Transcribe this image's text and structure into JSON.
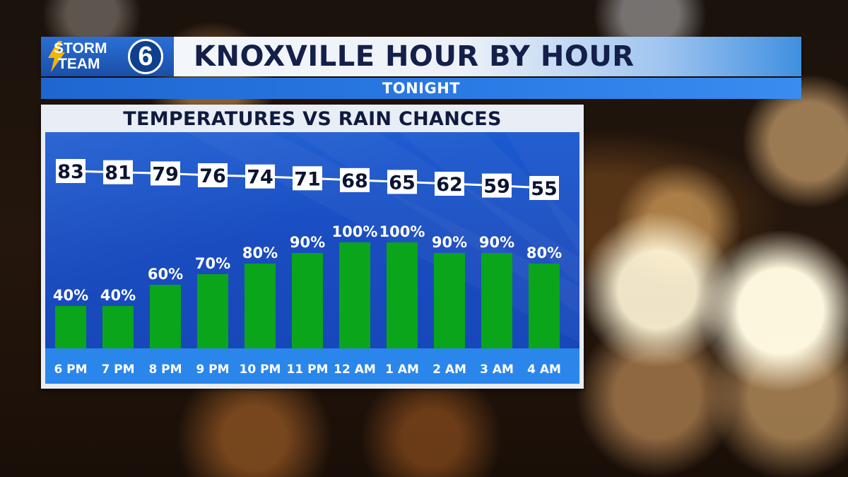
{
  "header": {
    "logo_text_line1": "STORM",
    "logo_text_line2": "TEAM",
    "logo_number": "6",
    "title": "KNOXVILLE HOUR BY HOUR"
  },
  "subheader": {
    "label": "TONIGHT"
  },
  "colors": {
    "accent_blue": "#1f66d1",
    "plot_blue": "#1a4cc0",
    "bar_green": "#0aa51a",
    "axis_band": "#2a86ea",
    "title_navy": "#14204a"
  },
  "chart_data": {
    "type": "bar",
    "title": "TEMPERATURES VS RAIN CHANCES",
    "categories": [
      "6 PM",
      "7 PM",
      "8 PM",
      "9 PM",
      "10 PM",
      "11 PM",
      "12 AM",
      "1 AM",
      "2 AM",
      "3 AM",
      "4 AM"
    ],
    "series": [
      {
        "values": [
          40,
          40,
          60,
          70,
          80,
          90,
          100,
          100,
          90,
          90,
          80
        ],
        "unit": "%",
        "type": "bar"
      },
      {
        "values": [
          83,
          81,
          79,
          76,
          74,
          71,
          68,
          65,
          62,
          59,
          55
        ],
        "type": "line"
      }
    ],
    "ylim": [
      0,
      100
    ],
    "grid": false,
    "legend": "none"
  }
}
